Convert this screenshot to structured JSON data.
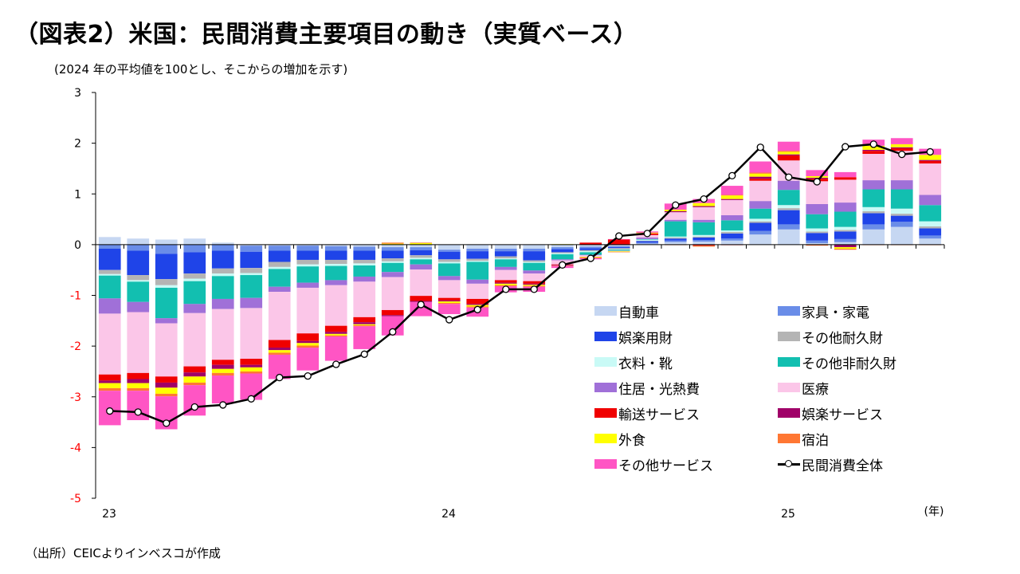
{
  "title": "（図表2）米国：民間消費主要項目の動き（実質ベース）",
  "subtitle": "(2024 年の平均値を100とし、そこからの増加を示す)",
  "source": "（出所）CEICよりインベスコが作成",
  "chart_data": {
    "type": "stacked-bar-with-line",
    "ylim": [
      -5,
      3
    ],
    "yticks": [
      3,
      2,
      1,
      0,
      -1,
      -2,
      -3,
      -4,
      -5
    ],
    "x_tick_labels": [
      {
        "index": 0,
        "label": "23"
      },
      {
        "index": 12,
        "label": "24"
      },
      {
        "index": 24,
        "label": "25"
      }
    ],
    "x_unit_label": "(年)",
    "months": [
      "23-01",
      "23-02",
      "23-03",
      "23-04",
      "23-05",
      "23-06",
      "23-07",
      "23-08",
      "23-09",
      "23-10",
      "23-11",
      "23-12",
      "24-01",
      "24-02",
      "24-03",
      "24-04",
      "24-05",
      "24-06",
      "24-07",
      "24-08",
      "24-09",
      "24-10",
      "24-11",
      "24-12",
      "25-01",
      "25-02",
      "25-03",
      "25-04",
      "25-05",
      "25-06"
    ],
    "series": [
      {
        "name": "自動車",
        "color": "#c6d7f2",
        "values": [
          0.15,
          0.12,
          0.1,
          0.12,
          0.04,
          -0.02,
          -0.02,
          -0.02,
          -0.03,
          -0.04,
          -0.05,
          -0.05,
          -0.1,
          -0.08,
          -0.08,
          -0.08,
          -0.05,
          -0.04,
          -0.03,
          0.02,
          0.05,
          0.06,
          0.08,
          0.2,
          0.3,
          0.03,
          0.05,
          0.3,
          0.35,
          0.12
        ]
      },
      {
        "name": "家具・家電",
        "color": "#6a8de8",
        "values": [
          -0.08,
          -0.12,
          -0.18,
          -0.15,
          -0.12,
          -0.12,
          -0.1,
          -0.1,
          -0.09,
          -0.08,
          -0.07,
          -0.06,
          -0.04,
          -0.05,
          -0.05,
          -0.05,
          -0.04,
          -0.03,
          -0.02,
          0.02,
          0.03,
          0.03,
          0.04,
          0.07,
          0.1,
          0.05,
          0.06,
          0.1,
          0.1,
          0.06
        ]
      },
      {
        "name": "娯楽用財",
        "color": "#1f44e8",
        "values": [
          -0.42,
          -0.48,
          -0.5,
          -0.42,
          -0.35,
          -0.32,
          -0.22,
          -0.18,
          -0.18,
          -0.18,
          -0.15,
          -0.1,
          -0.15,
          -0.15,
          -0.1,
          -0.18,
          -0.06,
          -0.04,
          -0.02,
          0.03,
          0.04,
          0.05,
          0.1,
          0.16,
          0.28,
          0.15,
          0.15,
          0.22,
          0.12,
          0.14
        ]
      },
      {
        "name": "その他耐久財",
        "color": "#b4b4b4",
        "values": [
          -0.08,
          -0.1,
          -0.12,
          -0.1,
          -0.1,
          -0.1,
          -0.1,
          -0.09,
          -0.08,
          -0.07,
          -0.06,
          -0.05,
          -0.05,
          -0.04,
          -0.04,
          -0.03,
          -0.02,
          -0.02,
          -0.02,
          0.01,
          0.02,
          0.02,
          0.03,
          0.03,
          0.04,
          0.03,
          0.03,
          0.04,
          0.04,
          0.04
        ]
      },
      {
        "name": "衣料・靴",
        "color": "#c9faf6",
        "values": [
          -0.03,
          -0.03,
          -0.05,
          -0.05,
          -0.05,
          -0.04,
          -0.04,
          -0.04,
          -0.04,
          -0.04,
          -0.03,
          -0.03,
          -0.03,
          -0.02,
          -0.02,
          -0.02,
          -0.02,
          -0.02,
          -0.01,
          0.02,
          0.02,
          0.03,
          0.03,
          0.05,
          0.06,
          0.06,
          0.06,
          0.08,
          0.1,
          0.1
        ]
      },
      {
        "name": "その他非耐久財",
        "color": "#12bfb0",
        "values": [
          -0.45,
          -0.4,
          -0.6,
          -0.45,
          -0.45,
          -0.45,
          -0.35,
          -0.32,
          -0.28,
          -0.22,
          -0.18,
          -0.1,
          -0.25,
          -0.35,
          -0.15,
          -0.15,
          -0.1,
          -0.05,
          -0.02,
          0.01,
          0.3,
          0.25,
          0.2,
          0.2,
          0.3,
          0.28,
          0.3,
          0.35,
          0.38,
          0.32
        ]
      },
      {
        "name": "住居・光熱費",
        "color": "#a070d8",
        "values": [
          -0.3,
          -0.2,
          -0.1,
          -0.18,
          -0.2,
          -0.2,
          -0.1,
          -0.1,
          -0.1,
          -0.1,
          -0.1,
          -0.1,
          -0.08,
          -0.08,
          -0.06,
          -0.06,
          -0.02,
          -0.01,
          0.0,
          0.03,
          0.03,
          0.05,
          0.1,
          0.15,
          0.18,
          0.2,
          0.18,
          0.18,
          0.18,
          0.2
        ]
      },
      {
        "name": "医療",
        "color": "#fbc6e8",
        "values": [
          -1.2,
          -1.2,
          -1.05,
          -1.05,
          -1.0,
          -1.0,
          -0.95,
          -0.9,
          -0.8,
          -0.7,
          -0.65,
          -0.52,
          -0.35,
          -0.3,
          -0.2,
          -0.15,
          -0.08,
          -0.03,
          -0.01,
          0.05,
          0.15,
          0.25,
          0.3,
          0.4,
          0.4,
          0.45,
          0.45,
          0.52,
          0.58,
          0.62
        ]
      },
      {
        "name": "輸送サービス",
        "color": "#f00000",
        "values": [
          -0.12,
          -0.12,
          -0.12,
          -0.12,
          -0.1,
          -0.12,
          -0.15,
          -0.15,
          -0.12,
          -0.1,
          -0.1,
          -0.1,
          -0.05,
          -0.1,
          -0.05,
          -0.05,
          -0.01,
          0.04,
          0.1,
          0.03,
          0.0,
          -0.02,
          -0.01,
          0.04,
          0.1,
          0.05,
          0.05,
          0.06,
          0.05,
          0.05
        ]
      },
      {
        "name": "娯楽サービス",
        "color": "#a00068",
        "values": [
          -0.05,
          -0.08,
          -0.1,
          -0.08,
          -0.08,
          -0.05,
          -0.05,
          -0.04,
          -0.04,
          -0.04,
          -0.02,
          -0.02,
          -0.02,
          -0.02,
          -0.02,
          -0.02,
          -0.01,
          0.0,
          0.0,
          0.0,
          0.02,
          0.02,
          0.02,
          0.04,
          0.02,
          0.02,
          -0.05,
          0.02,
          0.02,
          0.02
        ]
      },
      {
        "name": "外食",
        "color": "#ffff00",
        "values": [
          -0.1,
          -0.1,
          -0.12,
          -0.12,
          -0.08,
          -0.08,
          -0.05,
          -0.05,
          -0.03,
          -0.02,
          0.02,
          0.03,
          -0.03,
          -0.03,
          -0.03,
          -0.02,
          0.01,
          -0.01,
          -0.01,
          0.01,
          0.03,
          0.06,
          0.07,
          0.06,
          0.05,
          0.03,
          -0.03,
          0.08,
          0.06,
          0.1
        ]
      },
      {
        "name": "宿泊",
        "color": "#ff7733",
        "values": [
          -0.05,
          -0.05,
          -0.05,
          -0.05,
          -0.05,
          -0.04,
          -0.04,
          -0.04,
          -0.02,
          -0.02,
          0.02,
          0.01,
          -0.02,
          -0.02,
          -0.02,
          -0.02,
          -0.01,
          -0.02,
          -0.01,
          0.01,
          -0.01,
          -0.02,
          0.01,
          0.02,
          0.02,
          -0.02,
          -0.02,
          -0.01,
          -0.01,
          -0.01
        ]
      },
      {
        "name": "その他サービス",
        "color": "#ff55c4",
        "values": [
          -0.68,
          -0.58,
          -0.65,
          -0.6,
          -0.55,
          -0.52,
          -0.48,
          -0.45,
          -0.48,
          -0.45,
          -0.38,
          -0.28,
          -0.2,
          -0.18,
          -0.12,
          -0.1,
          -0.04,
          -0.02,
          0.01,
          0.02,
          0.12,
          0.08,
          0.18,
          0.22,
          0.18,
          0.12,
          0.1,
          0.12,
          0.12,
          0.12
        ]
      }
    ],
    "total": {
      "name": "民間消費全体",
      "color": "#000000",
      "values": [
        -3.28,
        -3.3,
        -3.52,
        -3.2,
        -3.16,
        -3.04,
        -2.62,
        -2.59,
        -2.36,
        -2.16,
        -1.72,
        -1.18,
        -1.48,
        -1.28,
        -0.88,
        -0.88,
        -0.4,
        -0.27,
        0.17,
        0.22,
        0.78,
        0.9,
        1.36,
        1.92,
        1.33,
        1.24,
        1.93,
        1.98,
        1.78,
        1.83
      ]
    }
  }
}
